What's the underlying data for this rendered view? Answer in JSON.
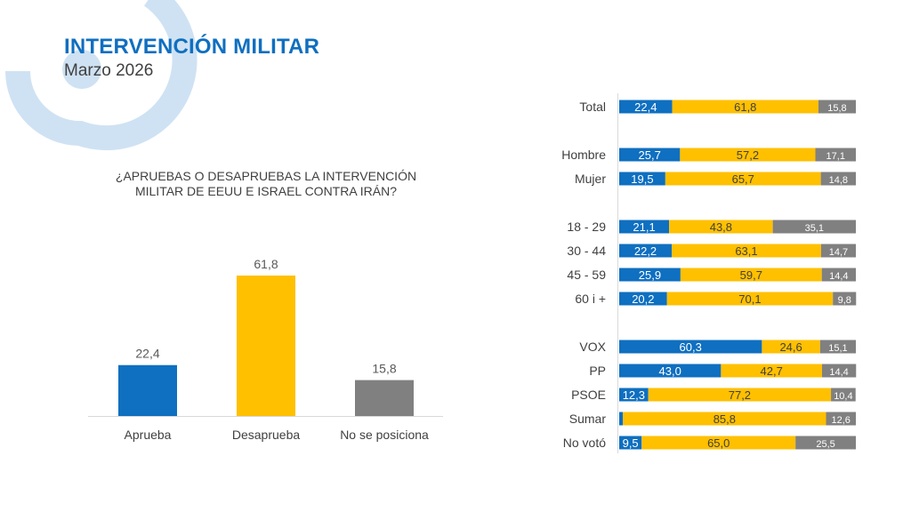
{
  "header": {
    "title": "INTERVENCIÓN MILITAR",
    "subtitle": "Marzo 2026"
  },
  "colors": {
    "approve": "#0f6fc0",
    "disapprove": "#ffc000",
    "no_position": "#808080",
    "decoration": "#cfe2f3"
  },
  "chart_data": [
    {
      "type": "bar",
      "title": "¿APRUEBAS O DESAPRUEBAS LA INTERVENCIÓN MILITAR DE EEUU E ISRAEL CONTRA IRÁN?",
      "title_lines": [
        "¿APRUEBAS O DESAPRUEBAS LA INTERVENCIÓN",
        "MILITAR DE EEUU E ISRAEL CONTRA IRÁN?"
      ],
      "categories": [
        "Aprueba",
        "Desaprueba",
        "No se posiciona"
      ],
      "values": [
        22.4,
        61.8,
        15.8
      ],
      "labels": [
        "22,4",
        "61,8",
        "15,8"
      ],
      "xlabel": "",
      "ylabel": "",
      "ylim": [
        0,
        62
      ],
      "grid": false,
      "legend": "none"
    },
    {
      "type": "bar",
      "orientation": "horizontal-stacked-100",
      "series_names": [
        "Aprueba",
        "Desaprueba",
        "No se posiciona"
      ],
      "groups": [
        {
          "rows": [
            {
              "label": "Total",
              "values": [
                22.4,
                61.8,
                15.8
              ],
              "labels": [
                "22,4",
                "61,8",
                "15,8"
              ]
            }
          ]
        },
        {
          "rows": [
            {
              "label": "Hombre",
              "values": [
                25.7,
                57.2,
                17.1
              ],
              "labels": [
                "25,7",
                "57,2",
                "17,1"
              ]
            },
            {
              "label": "Mujer",
              "values": [
                19.5,
                65.7,
                14.8
              ],
              "labels": [
                "19,5",
                "65,7",
                "14,8"
              ]
            }
          ]
        },
        {
          "rows": [
            {
              "label": "18 - 29",
              "values": [
                21.1,
                43.8,
                35.1
              ],
              "labels": [
                "21,1",
                "43,8",
                "35,1"
              ]
            },
            {
              "label": "30 - 44",
              "values": [
                22.2,
                63.1,
                14.7
              ],
              "labels": [
                "22,2",
                "63,1",
                "14,7"
              ]
            },
            {
              "label": "45 - 59",
              "values": [
                25.9,
                59.7,
                14.4
              ],
              "labels": [
                "25,9",
                "59,7",
                "14,4"
              ]
            },
            {
              "label": "60 i +",
              "values": [
                20.2,
                70.1,
                9.8
              ],
              "labels": [
                "20,2",
                "70,1",
                "9,8"
              ]
            }
          ]
        },
        {
          "rows": [
            {
              "label": "VOX",
              "values": [
                60.3,
                24.6,
                15.1
              ],
              "labels": [
                "60,3",
                "24,6",
                "15,1"
              ]
            },
            {
              "label": "PP",
              "values": [
                43.0,
                42.7,
                14.4
              ],
              "labels": [
                "43,0",
                "42,7",
                "14,4"
              ]
            },
            {
              "label": "PSOE",
              "values": [
                12.3,
                77.2,
                10.4
              ],
              "labels": [
                "12,3",
                "77,2",
                "10,4"
              ]
            },
            {
              "label": "Sumar",
              "values": [
                1.6,
                85.8,
                12.6
              ],
              "labels": [
                "",
                "85,8",
                "12,6"
              ]
            },
            {
              "label": "No votó",
              "values": [
                9.5,
                65.0,
                25.5
              ],
              "labels": [
                "9,5",
                "65,0",
                "25,5"
              ]
            }
          ]
        }
      ],
      "xlim": [
        0,
        100
      ],
      "grid": false,
      "legend": "none"
    }
  ]
}
